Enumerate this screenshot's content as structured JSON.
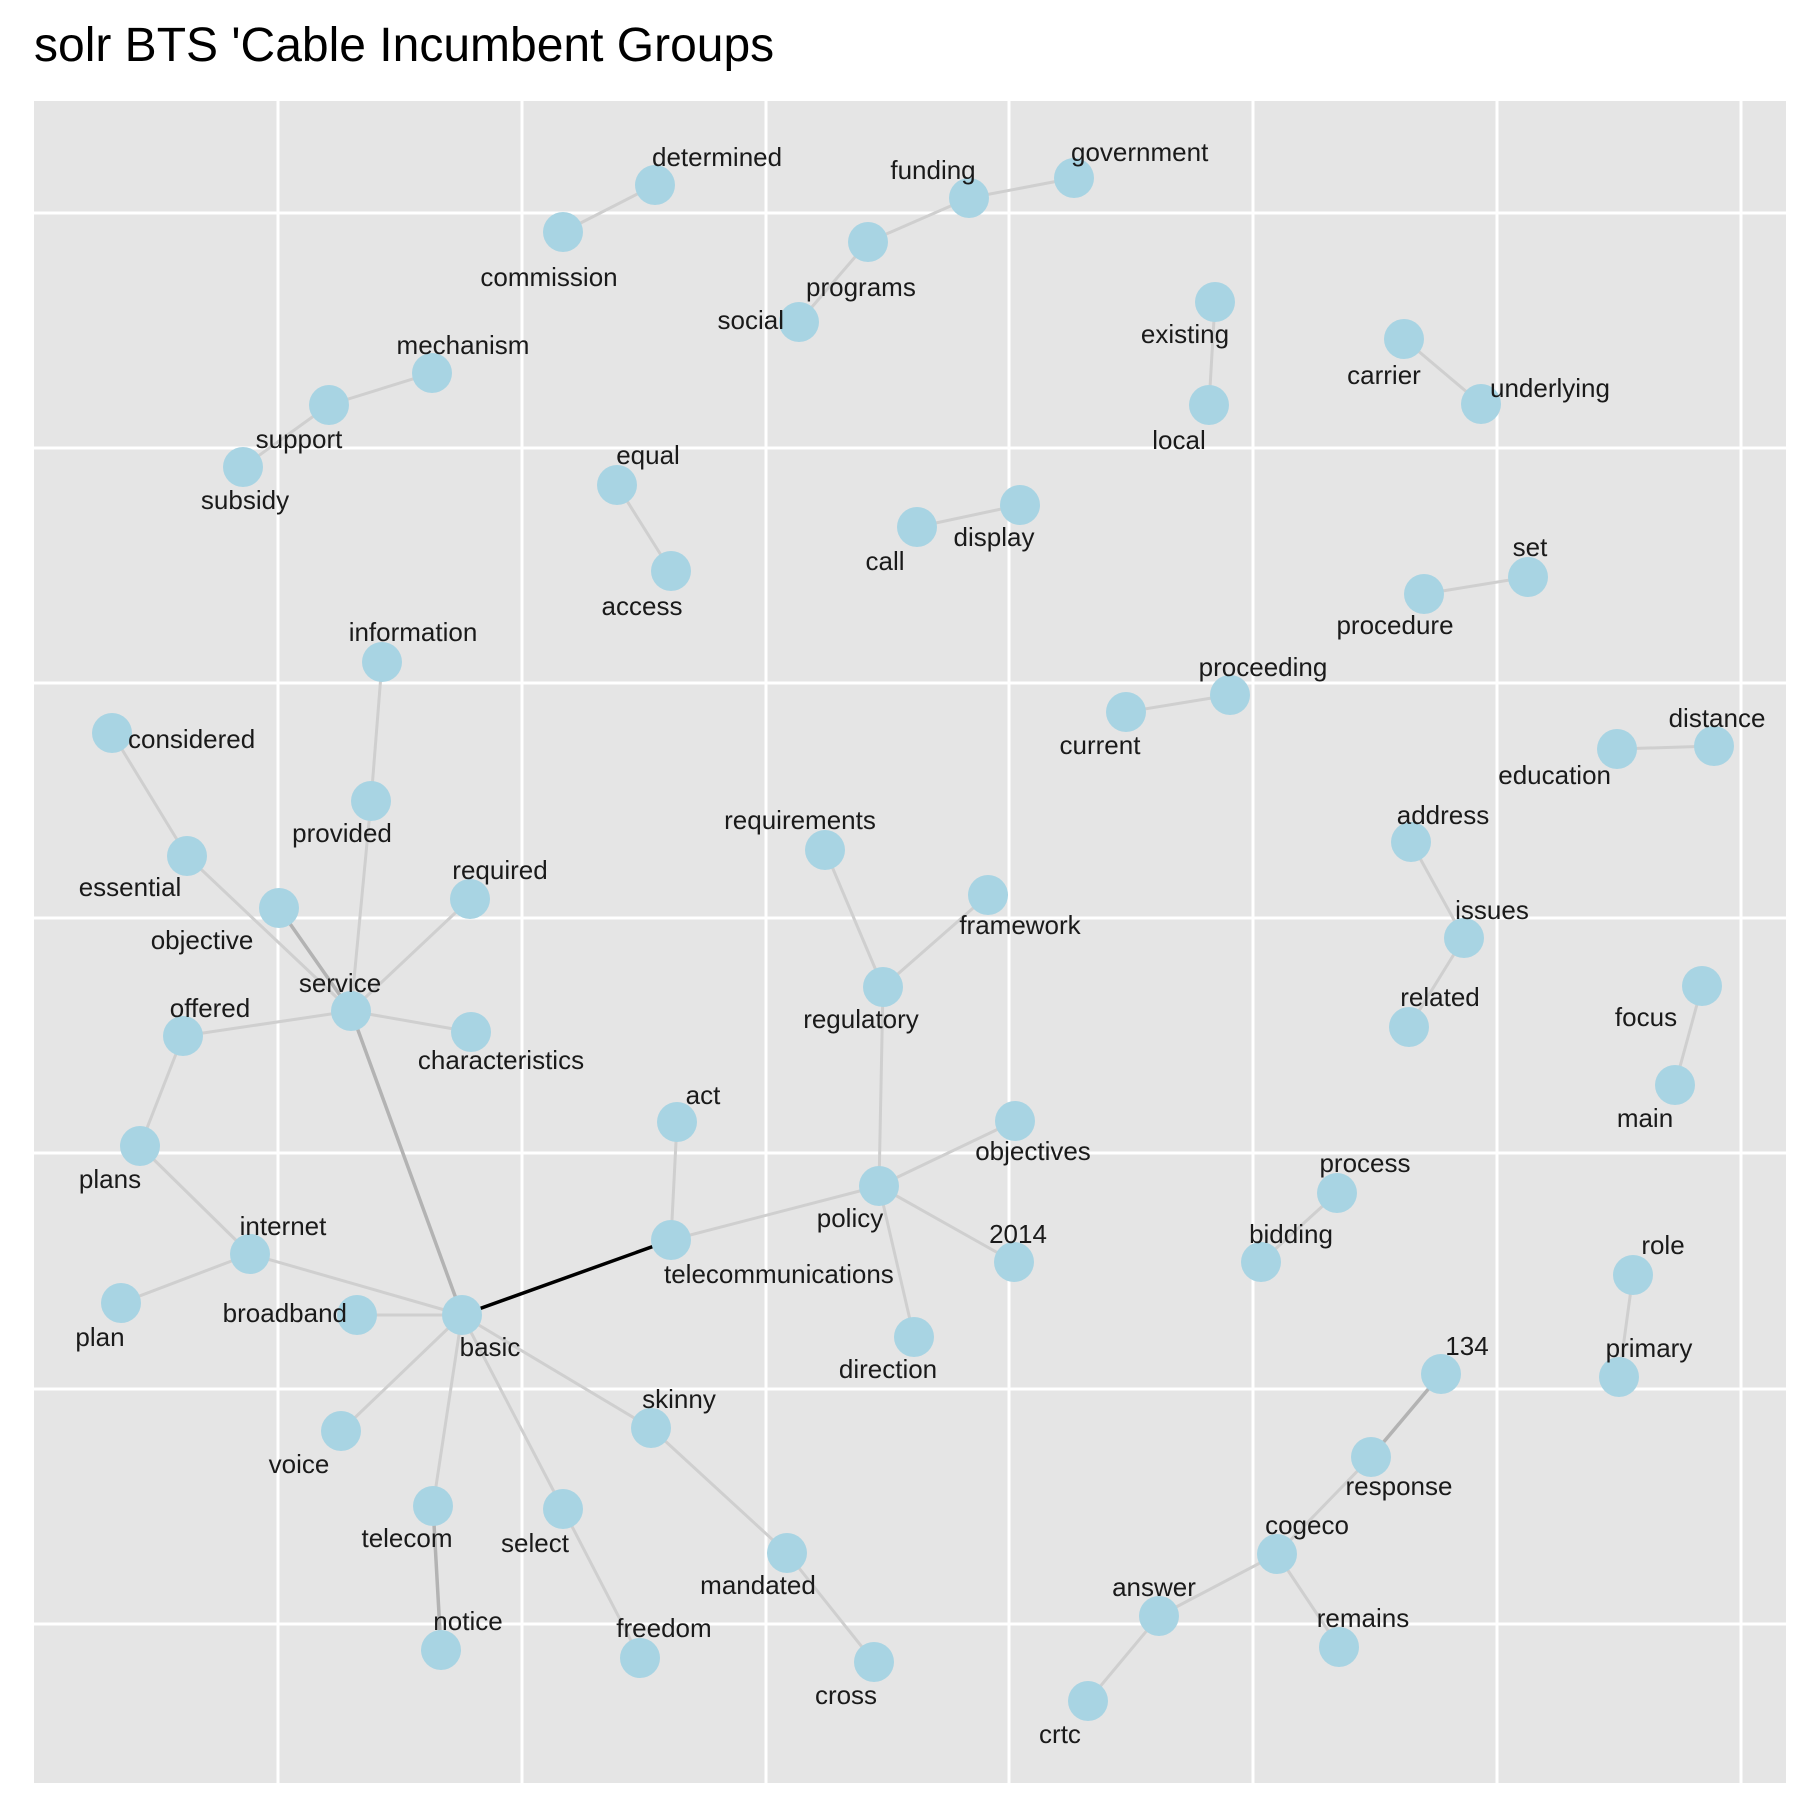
{
  "title": "solr BTS 'Cable Incumbent Groups",
  "colors": {
    "panel": "#e5e5e5",
    "grid": "#ffffff",
    "node": "#a8d4e3",
    "edge": "#cfcfcf",
    "edge_medium": "#b3b3b3",
    "edge_strong": "#000000"
  },
  "nodes": [
    {
      "id": "determined",
      "label": "determined"
    },
    {
      "id": "commission",
      "label": "commission"
    },
    {
      "id": "government",
      "label": "government"
    },
    {
      "id": "funding",
      "label": "funding"
    },
    {
      "id": "programs",
      "label": "programs"
    },
    {
      "id": "social",
      "label": "social"
    },
    {
      "id": "existing",
      "label": "existing"
    },
    {
      "id": "local",
      "label": "local"
    },
    {
      "id": "carrier",
      "label": "carrier"
    },
    {
      "id": "underlying",
      "label": "underlying"
    },
    {
      "id": "mechanism",
      "label": "mechanism"
    },
    {
      "id": "support",
      "label": "support"
    },
    {
      "id": "subsidy",
      "label": "subsidy"
    },
    {
      "id": "equal",
      "label": "equal"
    },
    {
      "id": "access",
      "label": "access"
    },
    {
      "id": "display",
      "label": "display"
    },
    {
      "id": "call",
      "label": "call"
    },
    {
      "id": "set",
      "label": "set"
    },
    {
      "id": "procedure",
      "label": "procedure"
    },
    {
      "id": "information",
      "label": "information"
    },
    {
      "id": "proceeding",
      "label": "proceeding"
    },
    {
      "id": "current",
      "label": "current"
    },
    {
      "id": "considered",
      "label": "considered"
    },
    {
      "id": "distance",
      "label": "distance"
    },
    {
      "id": "education",
      "label": "education"
    },
    {
      "id": "provided",
      "label": "provided"
    },
    {
      "id": "essential",
      "label": "essential"
    },
    {
      "id": "requirements",
      "label": "requirements"
    },
    {
      "id": "address",
      "label": "address"
    },
    {
      "id": "required",
      "label": "required"
    },
    {
      "id": "objective",
      "label": "objective"
    },
    {
      "id": "framework",
      "label": "framework"
    },
    {
      "id": "issues",
      "label": "issues"
    },
    {
      "id": "service",
      "label": "service"
    },
    {
      "id": "offered",
      "label": "offered"
    },
    {
      "id": "regulatory",
      "label": "regulatory"
    },
    {
      "id": "related",
      "label": "related"
    },
    {
      "id": "focus",
      "label": "focus"
    },
    {
      "id": "characteristics",
      "label": "characteristics"
    },
    {
      "id": "main",
      "label": "main"
    },
    {
      "id": "act",
      "label": "act"
    },
    {
      "id": "objectives",
      "label": "objectives"
    },
    {
      "id": "plans",
      "label": "plans"
    },
    {
      "id": "process",
      "label": "process"
    },
    {
      "id": "policy",
      "label": "policy"
    },
    {
      "id": "internet",
      "label": "internet"
    },
    {
      "id": "telecommunications",
      "label": "telecommunications"
    },
    {
      "id": "2014",
      "label": "2014"
    },
    {
      "id": "bidding",
      "label": "bidding"
    },
    {
      "id": "role",
      "label": "role"
    },
    {
      "id": "plan",
      "label": "plan"
    },
    {
      "id": "broadband",
      "label": "broadband"
    },
    {
      "id": "basic",
      "label": "basic"
    },
    {
      "id": "direction",
      "label": "direction"
    },
    {
      "id": "134",
      "label": "134"
    },
    {
      "id": "primary",
      "label": "primary"
    },
    {
      "id": "skinny",
      "label": "skinny"
    },
    {
      "id": "voice",
      "label": "voice"
    },
    {
      "id": "response",
      "label": "response"
    },
    {
      "id": "telecom",
      "label": "telecom"
    },
    {
      "id": "select",
      "label": "select"
    },
    {
      "id": "cogeco",
      "label": "cogeco"
    },
    {
      "id": "mandated",
      "label": "mandated"
    },
    {
      "id": "answer",
      "label": "answer"
    },
    {
      "id": "remains",
      "label": "remains"
    },
    {
      "id": "notice",
      "label": "notice"
    },
    {
      "id": "freedom",
      "label": "freedom"
    },
    {
      "id": "cross",
      "label": "cross"
    },
    {
      "id": "crtc",
      "label": "crtc"
    }
  ],
  "edges": [
    {
      "from": "determined",
      "to": "commission",
      "weight": "weak"
    },
    {
      "from": "government",
      "to": "funding",
      "weight": "weak"
    },
    {
      "from": "funding",
      "to": "programs",
      "weight": "weak"
    },
    {
      "from": "programs",
      "to": "social",
      "weight": "weak"
    },
    {
      "from": "existing",
      "to": "local",
      "weight": "weak"
    },
    {
      "from": "carrier",
      "to": "underlying",
      "weight": "weak"
    },
    {
      "from": "mechanism",
      "to": "support",
      "weight": "weak"
    },
    {
      "from": "support",
      "to": "subsidy",
      "weight": "weak"
    },
    {
      "from": "equal",
      "to": "access",
      "weight": "weak"
    },
    {
      "from": "display",
      "to": "call",
      "weight": "weak"
    },
    {
      "from": "set",
      "to": "procedure",
      "weight": "weak"
    },
    {
      "from": "proceeding",
      "to": "current",
      "weight": "weak"
    },
    {
      "from": "distance",
      "to": "education",
      "weight": "weak"
    },
    {
      "from": "information",
      "to": "provided",
      "weight": "weak"
    },
    {
      "from": "provided",
      "to": "service",
      "weight": "weak"
    },
    {
      "from": "considered",
      "to": "essential",
      "weight": "weak"
    },
    {
      "from": "essential",
      "to": "service",
      "weight": "weak"
    },
    {
      "from": "objective",
      "to": "service",
      "weight": "medium"
    },
    {
      "from": "required",
      "to": "service",
      "weight": "weak"
    },
    {
      "from": "service",
      "to": "offered",
      "weight": "weak"
    },
    {
      "from": "service",
      "to": "characteristics",
      "weight": "weak"
    },
    {
      "from": "service",
      "to": "basic",
      "weight": "medium"
    },
    {
      "from": "offered",
      "to": "plans",
      "weight": "weak"
    },
    {
      "from": "plans",
      "to": "internet",
      "weight": "weak"
    },
    {
      "from": "internet",
      "to": "plan",
      "weight": "weak"
    },
    {
      "from": "internet",
      "to": "basic",
      "weight": "weak"
    },
    {
      "from": "broadband",
      "to": "basic",
      "weight": "weak"
    },
    {
      "from": "basic",
      "to": "telecommunications",
      "weight": "strong"
    },
    {
      "from": "basic",
      "to": "voice",
      "weight": "weak"
    },
    {
      "from": "basic",
      "to": "telecom",
      "weight": "weak"
    },
    {
      "from": "basic",
      "to": "select",
      "weight": "weak"
    },
    {
      "from": "basic",
      "to": "skinny",
      "weight": "weak"
    },
    {
      "from": "telecom",
      "to": "notice",
      "weight": "medium"
    },
    {
      "from": "select",
      "to": "freedom",
      "weight": "weak"
    },
    {
      "from": "skinny",
      "to": "mandated",
      "weight": "weak"
    },
    {
      "from": "mandated",
      "to": "cross",
      "weight": "weak"
    },
    {
      "from": "act",
      "to": "telecommunications",
      "weight": "weak"
    },
    {
      "from": "telecommunications",
      "to": "policy",
      "weight": "weak"
    },
    {
      "from": "requirements",
      "to": "regulatory",
      "weight": "weak"
    },
    {
      "from": "framework",
      "to": "regulatory",
      "weight": "weak"
    },
    {
      "from": "regulatory",
      "to": "policy",
      "weight": "weak"
    },
    {
      "from": "policy",
      "to": "objectives",
      "weight": "weak"
    },
    {
      "from": "policy",
      "to": "2014",
      "weight": "weak"
    },
    {
      "from": "policy",
      "to": "direction",
      "weight": "weak"
    },
    {
      "from": "address",
      "to": "issues",
      "weight": "weak"
    },
    {
      "from": "issues",
      "to": "related",
      "weight": "weak"
    },
    {
      "from": "focus",
      "to": "main",
      "weight": "weak"
    },
    {
      "from": "process",
      "to": "bidding",
      "weight": "weak"
    },
    {
      "from": "role",
      "to": "primary",
      "weight": "weak"
    },
    {
      "from": "134",
      "to": "response",
      "weight": "medium"
    },
    {
      "from": "response",
      "to": "cogeco",
      "weight": "weak"
    },
    {
      "from": "cogeco",
      "to": "answer",
      "weight": "weak"
    },
    {
      "from": "cogeco",
      "to": "remains",
      "weight": "weak"
    },
    {
      "from": "answer",
      "to": "crtc",
      "weight": "weak"
    }
  ]
}
